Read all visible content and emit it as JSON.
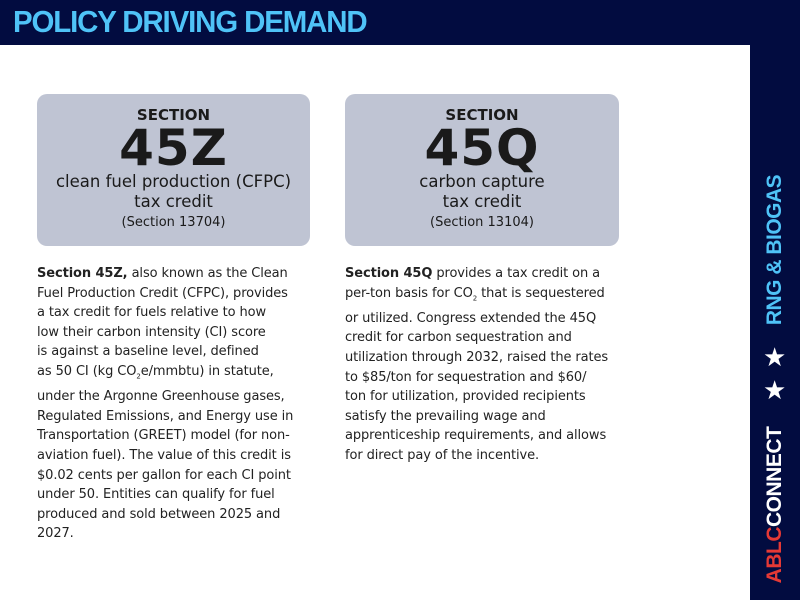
{
  "header": {
    "title": "POLICY DRIVING DEMAND"
  },
  "sidebar": {
    "tagline": "RNG & BIOGAS",
    "brand_red": "ABLC",
    "brand_white": "CONNECT",
    "star": "★",
    "colors": {
      "navy": "#020c40",
      "light_blue": "#4fc3f7",
      "red": "#e53935"
    }
  },
  "cards": [
    {
      "section": "SECTION",
      "number": "45Z",
      "desc1": "clean fuel production (CFPC)",
      "desc2": "tax credit",
      "ref": "(Section 13704)",
      "lead": "Section 45Z,",
      "lines": [
        " also known as the Clean",
        "Fuel Production Credit (CFPC), provides",
        "a tax credit for fuels relative to how",
        "low their carbon intensity (CI) score",
        "is against a baseline level, defined"
      ],
      "line6a": "as 50 CI (kg CO",
      "line6sub": "2",
      "line6b": "e/mmbtu) in statute,",
      "lines2": [
        "under the Argonne Greenhouse gases,",
        "Regulated Emissions, and Energy use in",
        "Transportation (GREET) model (for non-",
        "aviation fuel). The value of this credit is",
        "$0.02 cents per gallon for each CI point",
        "under 50. Entities can qualify for fuel",
        "produced and sold between 2025 and",
        "2027."
      ]
    },
    {
      "section": "SECTION",
      "number": "45Q",
      "desc1": "carbon capture",
      "desc2": "tax credit",
      "ref": "(Section 13104)",
      "lead": "Section 45Q",
      "lines": [
        " provides a tax credit on a"
      ],
      "line2a": "per-ton basis for CO",
      "line2sub": "2",
      "line2b": " that is sequestered",
      "lines2": [
        "or utilized. Congress extended the 45Q",
        "credit for carbon sequestration and",
        "utilization through 2032, raised the rates",
        "to $85/ton for sequestration and $60/",
        "ton for utilization, provided recipients",
        "satisfy the prevailing wage and",
        "apprenticeship requirements, and allows",
        "for direct pay of the incentive."
      ]
    }
  ]
}
